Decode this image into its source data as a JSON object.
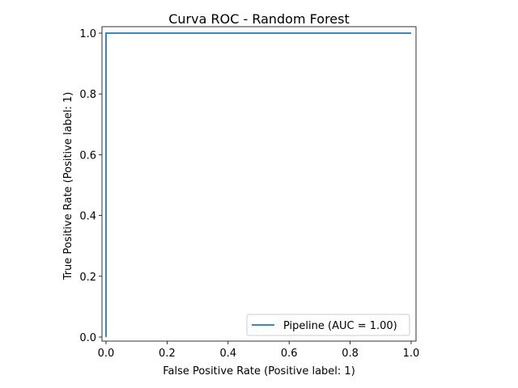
{
  "chart_data": {
    "type": "line",
    "title": "Curva ROC - Random Forest",
    "xlabel": "False Positive Rate (Positive label: 1)",
    "ylabel": "True Positive Rate (Positive label: 1)",
    "xlim": [
      0.0,
      1.0
    ],
    "ylim": [
      0.0,
      1.0
    ],
    "xticks": [
      0.0,
      0.2,
      0.4,
      0.6,
      0.8,
      1.0
    ],
    "yticks": [
      0.0,
      0.2,
      0.4,
      0.6,
      0.8,
      1.0
    ],
    "xtick_labels": [
      "0.0",
      "0.2",
      "0.4",
      "0.6",
      "0.8",
      "1.0"
    ],
    "ytick_labels": [
      "0.0",
      "0.2",
      "0.4",
      "0.6",
      "0.8",
      "1.0"
    ],
    "grid": false,
    "legend_position": "lower-right",
    "series": [
      {
        "name": "Pipeline (AUC = 1.00)",
        "color": "#1f77b4",
        "x": [
          0.0,
          0.0,
          0.0,
          1.0
        ],
        "y": [
          0.0,
          0.0,
          1.0,
          1.0
        ]
      }
    ]
  }
}
